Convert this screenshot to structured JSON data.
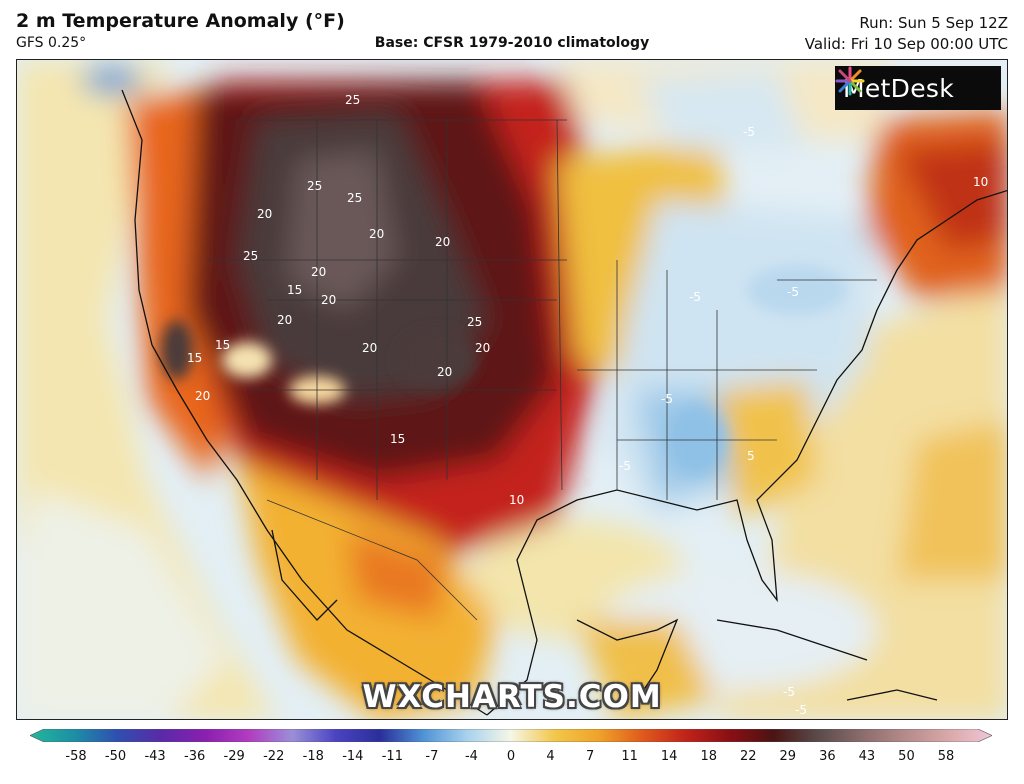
{
  "header": {
    "title": "2 m Temperature Anomaly (°F)",
    "model": "GFS 0.25°",
    "base": "Base: CFSR 1979-2010 climatology",
    "run": "Run: Sun 5 Sep 12Z",
    "valid": "Valid: Fri 10 Sep 00:00 UTC"
  },
  "logo": {
    "text": "MetDesk",
    "icon": "metdesk-starburst-icon"
  },
  "watermark": "WXCHARTS.COM",
  "colorbar": {
    "ticks": [
      "-58",
      "-50",
      "-43",
      "-36",
      "-29",
      "-22",
      "-18",
      "-14",
      "-11",
      "-7",
      "-4",
      "0",
      "4",
      "7",
      "11",
      "14",
      "18",
      "22",
      "29",
      "36",
      "43",
      "50",
      "58"
    ],
    "stops": [
      "#22b89a",
      "#1d8fa6",
      "#2f4fb0",
      "#5a2aa8",
      "#8a1fb0",
      "#b23cc0",
      "#9a8fd8",
      "#4a43c2",
      "#2a2f9a",
      "#4f93d6",
      "#a9d2ee",
      "#f6f6e6",
      "#f2c74a",
      "#f0a32a",
      "#e05a1c",
      "#c0231a",
      "#8a0f14",
      "#4b1414",
      "#5a4a4a",
      "#8a6b6b",
      "#b58a8a",
      "#d9a8a8",
      "#f0c6d6"
    ]
  },
  "map": {
    "contour_labels": [
      {
        "text": "25"
      },
      {
        "text": "25"
      },
      {
        "text": "25"
      },
      {
        "text": "20"
      },
      {
        "text": "20"
      },
      {
        "text": "20"
      },
      {
        "text": "25"
      },
      {
        "text": "20"
      },
      {
        "text": "15"
      },
      {
        "text": "20"
      },
      {
        "text": "20"
      },
      {
        "text": "25"
      },
      {
        "text": "20"
      },
      {
        "text": "20"
      },
      {
        "text": "15"
      },
      {
        "text": "20"
      },
      {
        "text": "15"
      },
      {
        "text": "20"
      },
      {
        "text": "15"
      },
      {
        "text": "10"
      },
      {
        "text": "-5"
      },
      {
        "text": "10"
      },
      {
        "text": "-5"
      },
      {
        "text": "-5"
      },
      {
        "text": "-5"
      },
      {
        "text": "-5"
      },
      {
        "text": "5"
      },
      {
        "text": "-5"
      },
      {
        "text": "-5"
      }
    ]
  }
}
